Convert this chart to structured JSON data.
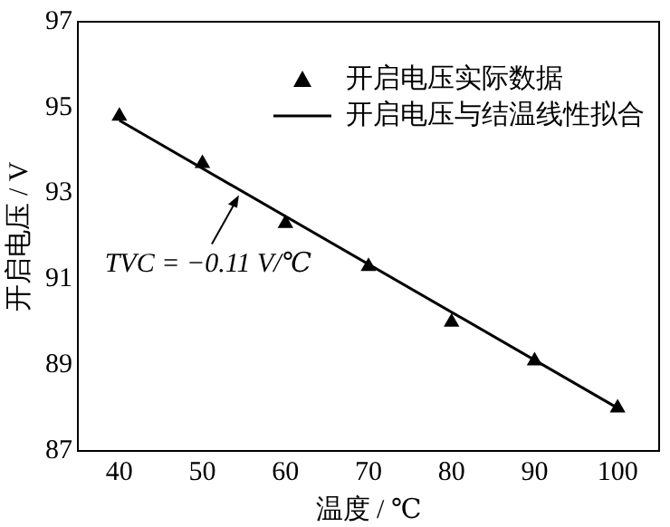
{
  "chart_data": {
    "type": "scatter",
    "xlabel": "温度 / ℃",
    "ylabel": "开启电压 / V",
    "x": [
      40,
      50,
      60,
      70,
      80,
      90,
      100
    ],
    "series": [
      {
        "name": "开启电压实际数据",
        "type": "scatter",
        "color": "#000000",
        "marker": "triangle",
        "values": [
          94.8,
          93.7,
          92.3,
          91.3,
          90.0,
          89.1,
          88.0
        ]
      },
      {
        "name": "开启电压与结温线性拟合",
        "type": "line",
        "color": "#000000",
        "marker": "none",
        "line_style": "solid",
        "x": [
          40,
          100
        ],
        "values": [
          94.7,
          88.0
        ]
      }
    ],
    "xlim": [
      35,
      105
    ],
    "xticks": [
      40,
      50,
      60,
      70,
      80,
      90,
      100
    ],
    "ylim": [
      87,
      97
    ],
    "yticks": [
      87,
      89,
      91,
      93,
      95,
      97
    ],
    "grid": false,
    "legend": "top right",
    "annotations": [
      {
        "text": "TVC = −0.11 V/℃",
        "x": 54.4,
        "y": 93.0
      }
    ]
  }
}
